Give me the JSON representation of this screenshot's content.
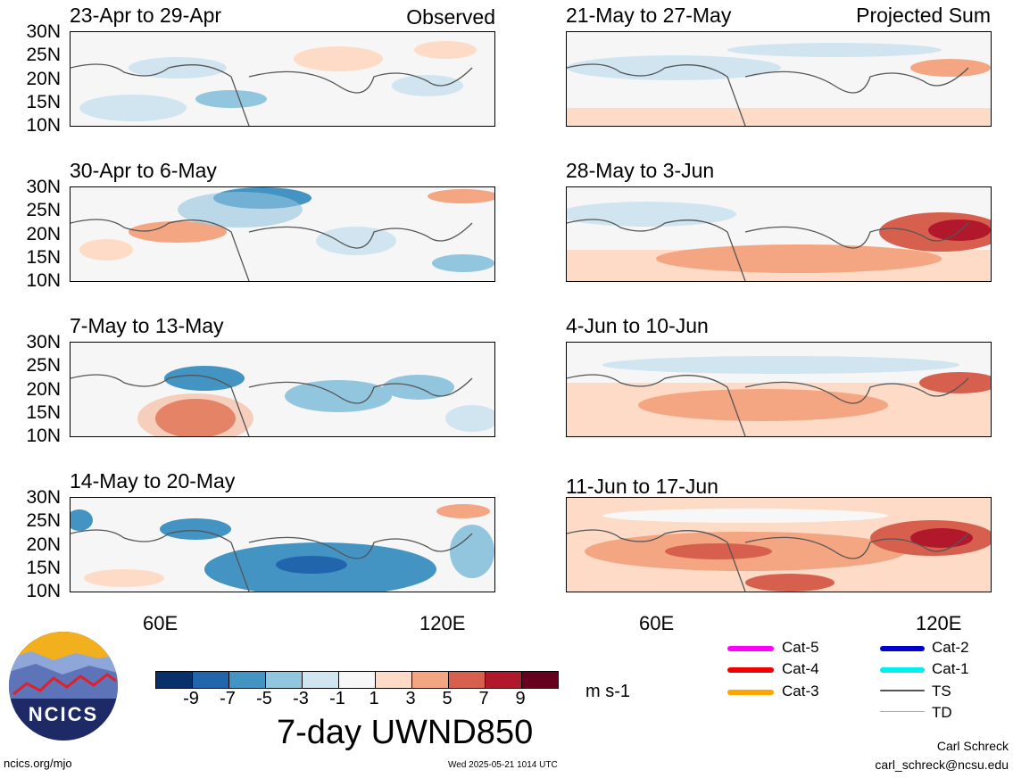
{
  "header": {
    "observed_label": "Observed",
    "projected_label": "Projected Sum"
  },
  "panels": [
    {
      "title": "23-Apr to 29-Apr"
    },
    {
      "title": "30-Apr to 6-May"
    },
    {
      "title": "7-May to 13-May"
    },
    {
      "title": "14-May to 20-May"
    },
    {
      "title": "21-May to 27-May"
    },
    {
      "title": "28-May to 3-Jun"
    },
    {
      "title": "4-Jun to 10-Jun"
    },
    {
      "title": "11-Jun to 17-Jun"
    }
  ],
  "lat_ticks": [
    "30N",
    "25N",
    "20N",
    "15N",
    "10N"
  ],
  "lon_ticks": [
    "60E",
    "120E"
  ],
  "colorbar": {
    "labels": [
      "-9",
      "-7",
      "-5",
      "-3",
      "-1",
      "1",
      "3",
      "5",
      "7",
      "9"
    ],
    "colors": [
      "#08306b",
      "#2166ac",
      "#4393c3",
      "#92c5de",
      "#d1e5f0",
      "#f7f7f7",
      "#fddbc7",
      "#f4a582",
      "#d6604d",
      "#b2182b",
      "#67001f"
    ],
    "units": "m s-1",
    "title": "7-day UWND850"
  },
  "legend": [
    {
      "label": "Cat-5",
      "color": "#ff00ff"
    },
    {
      "label": "Cat-4",
      "color": "#ee0000"
    },
    {
      "label": "Cat-3",
      "color": "#ffa500"
    },
    {
      "label": "Cat-2",
      "color": "#0000cc"
    },
    {
      "label": "Cat-1",
      "color": "#00eeee"
    },
    {
      "label": "TS",
      "color": "#555555"
    },
    {
      "label": "TD",
      "color": "#aaaaaa"
    }
  ],
  "logo": {
    "text": "NCICS"
  },
  "footer": {
    "site": "ncics.org/mjo",
    "timestamp": "Wed 2025-05-21 1014 UTC",
    "author": "Carl Schreck",
    "email": "carl_schreck@ncsu.edu"
  }
}
